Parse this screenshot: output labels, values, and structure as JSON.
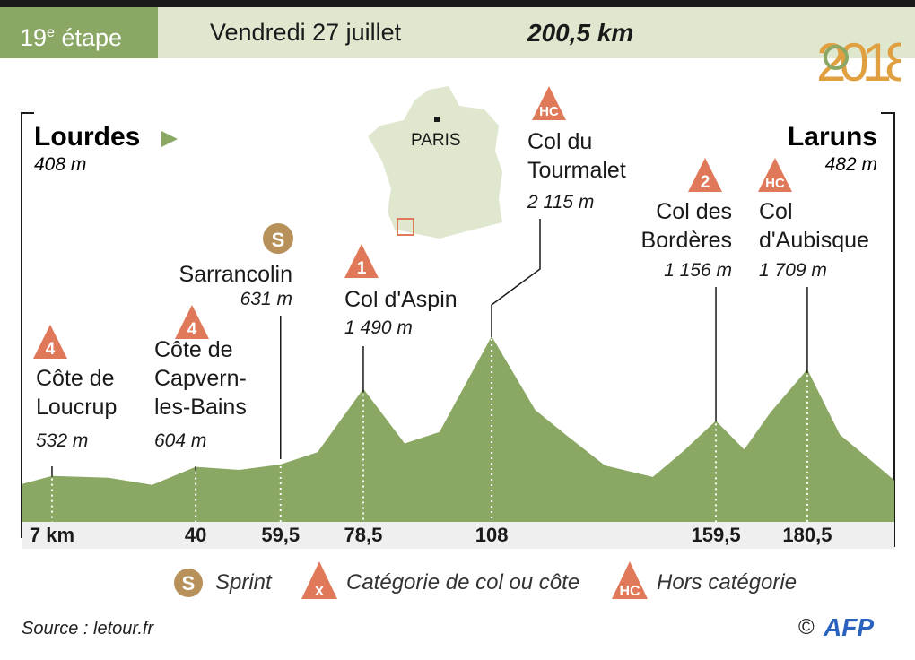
{
  "header": {
    "stage_number": "19",
    "stage_sup": "e",
    "stage_word": "étape",
    "date": "Vendredi 27 juillet",
    "distance": "200,5 km",
    "logo_text": "2018"
  },
  "start": {
    "name": "Lourdes",
    "altitude": "408 m"
  },
  "finish": {
    "name": "Laruns",
    "altitude": "482 m"
  },
  "map": {
    "capital": "PARIS"
  },
  "colors": {
    "profile": "#8aa863",
    "climb": "#e0795a",
    "sprint": "#b8915a",
    "header_bg": "#dfe7cf",
    "stage_bg": "#8aa863"
  },
  "chart_data": {
    "type": "area",
    "title": "",
    "xlabel": "",
    "ylabel": "",
    "x_range": [
      0,
      200.5
    ],
    "points_km_alt": [
      [
        0,
        408
      ],
      [
        7,
        532
      ],
      [
        20,
        480
      ],
      [
        30,
        430
      ],
      [
        40,
        604
      ],
      [
        50,
        600
      ],
      [
        59.5,
        631
      ],
      [
        68,
        800
      ],
      [
        78.5,
        1490
      ],
      [
        88,
        900
      ],
      [
        96,
        1000
      ],
      [
        108,
        2115
      ],
      [
        118,
        1250
      ],
      [
        125,
        1000
      ],
      [
        134,
        620
      ],
      [
        145,
        520
      ],
      [
        152,
        780
      ],
      [
        159.5,
        1156
      ],
      [
        166,
        800
      ],
      [
        172,
        1250
      ],
      [
        180.5,
        1709
      ],
      [
        188,
        1000
      ],
      [
        196,
        640
      ],
      [
        200.5,
        482
      ]
    ],
    "km_ticks": [
      "7  km",
      "40",
      "59,5",
      "78,5",
      "108",
      "159,5",
      "180,5"
    ],
    "km_tick_values": [
      7,
      40,
      59.5,
      78.5,
      108,
      159.5,
      180.5
    ],
    "climbs": [
      {
        "cat": "4",
        "name_lines": [
          "Côte de",
          "Loucrup"
        ],
        "altitude": "532 m",
        "km": 7
      },
      {
        "cat": "4",
        "name_lines": [
          "Côte de",
          "Capvern-",
          "les-Bains"
        ],
        "altitude": "604 m",
        "km": 40
      },
      {
        "cat": "1",
        "name_lines": [
          "Col d'Aspin"
        ],
        "altitude": "1 490 m",
        "km": 78.5
      },
      {
        "cat": "HC",
        "name_lines": [
          "Col du",
          "Tourmalet"
        ],
        "altitude": "2 115 m",
        "km": 108
      },
      {
        "cat": "2",
        "name_lines": [
          "Col des",
          "Bordères"
        ],
        "altitude": "1 156 m",
        "km": 159.5
      },
      {
        "cat": "HC",
        "name_lines": [
          "Col",
          "d'Aubisque"
        ],
        "altitude": "1 709 m",
        "km": 180.5
      }
    ],
    "sprint": {
      "symbol": "S",
      "name": "Sarrancolin",
      "altitude": "631 m",
      "km": 59.5
    }
  },
  "legend": {
    "sprint_symbol": "S",
    "sprint": "Sprint",
    "category_symbol": "x",
    "category": "Catégorie de col ou côte",
    "hc_symbol": "HC",
    "hc": "Hors catégorie"
  },
  "footer": {
    "source": "Source : letour.fr",
    "copyright": "©",
    "agency": "AFP"
  }
}
